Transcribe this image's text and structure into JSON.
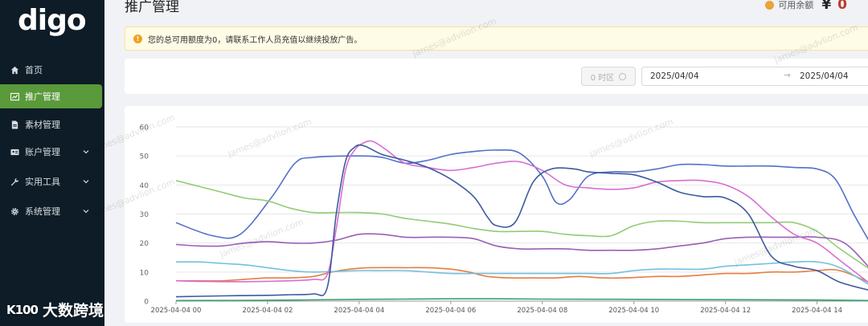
{
  "app": {
    "logo": "digo"
  },
  "sidebar": {
    "items": [
      {
        "label": "首页",
        "icon": "home-icon"
      },
      {
        "label": "推广管理",
        "icon": "chart-icon",
        "active": true
      },
      {
        "label": "素材管理",
        "icon": "file-icon"
      },
      {
        "label": "账户管理",
        "icon": "id-card-icon",
        "expandable": true
      },
      {
        "label": "实用工具",
        "icon": "wrench-icon",
        "expandable": true
      },
      {
        "label": "系统管理",
        "icon": "gear-icon",
        "expandable": true
      }
    ]
  },
  "header": {
    "title": "推广管理",
    "balance_label": "可用余额",
    "currency": "¥",
    "balance_value": "0"
  },
  "alert": {
    "text": "您的总可用额度为0，请联系工作人员充值以继续投放广告。"
  },
  "filters": {
    "timezone_label": "0 时区",
    "date_start": "2025/04/04",
    "date_arrow": "→",
    "date_end": "2025/04/04"
  },
  "watermark": {
    "text": "james@advlion.com",
    "brand": "大数跨境",
    "brand_mark": "K100"
  },
  "colors": {
    "sidebar_bg": "#0d1c27",
    "active_nav": "#5a9a3a",
    "balance_value": "#c0392b",
    "alert_bg": "#fefbe6"
  },
  "chart_data": {
    "type": "line",
    "title": "",
    "xlabel": "",
    "ylabel": "",
    "ylim": [
      0,
      60
    ],
    "yticks": [
      0,
      10,
      20,
      30,
      40,
      50,
      60
    ],
    "xlim": [
      0,
      15.2
    ],
    "xticks": [
      {
        "v": 0,
        "label": "2025-04-04 00"
      },
      {
        "v": 2,
        "label": "2025-04-04 02"
      },
      {
        "v": 4,
        "label": "2025-04-04 04"
      },
      {
        "v": 6,
        "label": "2025-04-04 06"
      },
      {
        "v": 8,
        "label": "2025-04-04 08"
      },
      {
        "v": 10,
        "label": "2025-04-04 10"
      },
      {
        "v": 12,
        "label": "2025-04-04 12"
      },
      {
        "v": 14,
        "label": "2025-04-04 14"
      }
    ],
    "grid": true,
    "series": [
      {
        "color": "#5470c6",
        "points": [
          [
            0,
            27
          ],
          [
            0.8,
            22.5
          ],
          [
            1.4,
            23
          ],
          [
            2.1,
            36
          ],
          [
            2.6,
            47.5
          ],
          [
            3,
            49.5
          ],
          [
            4,
            50
          ],
          [
            4.5,
            49.5
          ],
          [
            5,
            47.5
          ],
          [
            5.5,
            48.5
          ],
          [
            6,
            50.5
          ],
          [
            6.5,
            51.5
          ],
          [
            7,
            52
          ],
          [
            7.5,
            51
          ],
          [
            8,
            43
          ],
          [
            8.3,
            34
          ],
          [
            8.6,
            35
          ],
          [
            9,
            43
          ],
          [
            9.5,
            44.5
          ],
          [
            10,
            44.5
          ],
          [
            10.5,
            45.5
          ],
          [
            11,
            47
          ],
          [
            11.5,
            47
          ],
          [
            12,
            46.5
          ],
          [
            12.5,
            46.5
          ],
          [
            13,
            46.5
          ],
          [
            13.5,
            46
          ],
          [
            14,
            45.5
          ],
          [
            14.4,
            42
          ],
          [
            14.8,
            30
          ],
          [
            15.2,
            19
          ]
        ]
      },
      {
        "color": "#91cc75",
        "points": [
          [
            0,
            41.5
          ],
          [
            0.5,
            39.5
          ],
          [
            1,
            37.5
          ],
          [
            1.5,
            35.5
          ],
          [
            2,
            34.5
          ],
          [
            2.5,
            32
          ],
          [
            3,
            30.5
          ],
          [
            3.5,
            30.5
          ],
          [
            4,
            30.5
          ],
          [
            4.5,
            30
          ],
          [
            5,
            28.5
          ],
          [
            5.5,
            27.5
          ],
          [
            6,
            26.5
          ],
          [
            6.5,
            25
          ],
          [
            7,
            24
          ],
          [
            7.5,
            24
          ],
          [
            8,
            24
          ],
          [
            8.5,
            23
          ],
          [
            9,
            22.5
          ],
          [
            9.5,
            22.5
          ],
          [
            10,
            26
          ],
          [
            10.5,
            27.5
          ],
          [
            11,
            27.5
          ],
          [
            11.5,
            27
          ],
          [
            12,
            27
          ],
          [
            12.5,
            27
          ],
          [
            13,
            27
          ],
          [
            13.5,
            27
          ],
          [
            14,
            24
          ],
          [
            14.5,
            18
          ],
          [
            15.2,
            10.5
          ]
        ]
      },
      {
        "color": "#e67e3f",
        "points": [
          [
            0,
            7
          ],
          [
            0.5,
            7
          ],
          [
            1,
            7
          ],
          [
            1.5,
            7.5
          ],
          [
            2,
            8
          ],
          [
            2.5,
            8
          ],
          [
            3,
            8.5
          ],
          [
            3.4,
            10
          ],
          [
            3.8,
            11
          ],
          [
            4.2,
            11.5
          ],
          [
            5,
            11.5
          ],
          [
            5.5,
            11.5
          ],
          [
            6,
            11
          ],
          [
            6.4,
            10
          ],
          [
            6.8,
            8.5
          ],
          [
            7.3,
            8
          ],
          [
            7.8,
            8
          ],
          [
            8.3,
            8
          ],
          [
            8.8,
            8.5
          ],
          [
            9.3,
            8
          ],
          [
            9.8,
            8
          ],
          [
            10.5,
            8.5
          ],
          [
            11,
            8.5
          ],
          [
            11.5,
            9
          ],
          [
            12,
            9.5
          ],
          [
            12.5,
            9.5
          ],
          [
            13,
            10
          ],
          [
            13.5,
            10
          ],
          [
            14,
            10.5
          ],
          [
            14.5,
            10.5
          ],
          [
            15.2,
            6
          ]
        ]
      },
      {
        "color": "#73c0de",
        "points": [
          [
            0,
            13.5
          ],
          [
            0.5,
            13.5
          ],
          [
            1,
            13
          ],
          [
            1.5,
            12.5
          ],
          [
            2,
            11.5
          ],
          [
            2.5,
            10.5
          ],
          [
            3,
            10
          ],
          [
            4,
            10.5
          ],
          [
            4.5,
            10.5
          ],
          [
            5,
            10.5
          ],
          [
            5.5,
            10
          ],
          [
            6,
            9.5
          ],
          [
            6.5,
            9.5
          ],
          [
            7,
            9.5
          ],
          [
            7.5,
            9.5
          ],
          [
            8,
            9.5
          ],
          [
            8.5,
            9.5
          ],
          [
            9,
            9.5
          ],
          [
            9.5,
            9.5
          ],
          [
            10,
            10.5
          ],
          [
            10.5,
            11
          ],
          [
            11,
            11
          ],
          [
            11.5,
            11
          ],
          [
            12,
            12
          ],
          [
            12.5,
            12.5
          ],
          [
            13,
            13
          ],
          [
            13.5,
            13.5
          ],
          [
            14,
            13.5
          ],
          [
            14.5,
            11.5
          ],
          [
            15.2,
            5
          ]
        ]
      },
      {
        "color": "#9a60b4",
        "points": [
          [
            0,
            19.5
          ],
          [
            0.5,
            19
          ],
          [
            1,
            19
          ],
          [
            1.5,
            20
          ],
          [
            2,
            20.5
          ],
          [
            2.5,
            20
          ],
          [
            3,
            20
          ],
          [
            3.5,
            21
          ],
          [
            4,
            23
          ],
          [
            4.5,
            23
          ],
          [
            5,
            22
          ],
          [
            5.5,
            22
          ],
          [
            6,
            22
          ],
          [
            6.5,
            21.5
          ],
          [
            7,
            19
          ],
          [
            7.5,
            18
          ],
          [
            8,
            18
          ],
          [
            8.5,
            18
          ],
          [
            9,
            17.5
          ],
          [
            9.5,
            17.5
          ],
          [
            10,
            17.5
          ],
          [
            10.5,
            18
          ],
          [
            11,
            19
          ],
          [
            11.5,
            20
          ],
          [
            12,
            21.5
          ],
          [
            12.5,
            22
          ],
          [
            13,
            22
          ],
          [
            13.5,
            22
          ],
          [
            14,
            22
          ],
          [
            14.6,
            20
          ],
          [
            15.2,
            10.5
          ]
        ]
      },
      {
        "color": "#d76fd1",
        "points": [
          [
            0,
            7
          ],
          [
            0.5,
            6.8
          ],
          [
            1,
            6.7
          ],
          [
            1.5,
            6.7
          ],
          [
            2,
            6.8
          ],
          [
            2.5,
            7
          ],
          [
            3,
            7.5
          ],
          [
            3.3,
            9
          ],
          [
            3.5,
            25
          ],
          [
            3.7,
            45
          ],
          [
            3.9,
            52
          ],
          [
            4.1,
            54.5
          ],
          [
            4.3,
            55
          ],
          [
            4.6,
            52
          ],
          [
            5,
            47.5
          ],
          [
            5.5,
            46
          ],
          [
            6,
            45
          ],
          [
            6.5,
            46
          ],
          [
            7,
            47.5
          ],
          [
            7.5,
            48
          ],
          [
            8,
            45
          ],
          [
            8.5,
            40
          ],
          [
            9,
            39
          ],
          [
            9.5,
            38.5
          ],
          [
            10,
            39
          ],
          [
            10.5,
            41
          ],
          [
            11,
            41.5
          ],
          [
            11.5,
            41.5
          ],
          [
            12,
            40
          ],
          [
            12.5,
            36
          ],
          [
            13,
            29
          ],
          [
            13.5,
            23
          ],
          [
            14,
            20
          ],
          [
            14.5,
            14
          ],
          [
            15.2,
            5.5
          ]
        ]
      },
      {
        "color": "#3e5a9e",
        "points": [
          [
            0,
            1.5
          ],
          [
            1,
            1.8
          ],
          [
            2,
            2
          ],
          [
            2.5,
            2.2
          ],
          [
            3,
            2.5
          ],
          [
            3.3,
            4.5
          ],
          [
            3.5,
            30
          ],
          [
            3.7,
            48
          ],
          [
            3.9,
            53
          ],
          [
            4.1,
            53.5
          ],
          [
            4.5,
            50.5
          ],
          [
            5,
            48.5
          ],
          [
            5.5,
            46
          ],
          [
            6,
            42
          ],
          [
            6.5,
            36
          ],
          [
            6.8,
            29
          ],
          [
            7,
            26
          ],
          [
            7.4,
            27
          ],
          [
            7.8,
            41
          ],
          [
            8.2,
            45.5
          ],
          [
            8.7,
            45.5
          ],
          [
            9,
            44.5
          ],
          [
            9.5,
            44
          ],
          [
            10,
            43.5
          ],
          [
            10.5,
            41
          ],
          [
            11,
            37.5
          ],
          [
            11.5,
            36
          ],
          [
            12,
            35.5
          ],
          [
            12.5,
            30
          ],
          [
            13,
            15.5
          ],
          [
            13.5,
            12
          ],
          [
            14,
            10.5
          ],
          [
            14.5,
            6.5
          ],
          [
            15.2,
            3.5
          ]
        ]
      },
      {
        "color": "#3ba272",
        "points": [
          [
            0,
            0.2
          ],
          [
            2,
            0.3
          ],
          [
            4,
            0.6
          ],
          [
            5,
            0.7
          ],
          [
            6,
            0.8
          ],
          [
            7,
            0.8
          ],
          [
            8,
            0.7
          ],
          [
            10,
            0.6
          ],
          [
            12,
            0.5
          ],
          [
            14,
            0.4
          ],
          [
            15.2,
            0.2
          ]
        ]
      }
    ]
  }
}
